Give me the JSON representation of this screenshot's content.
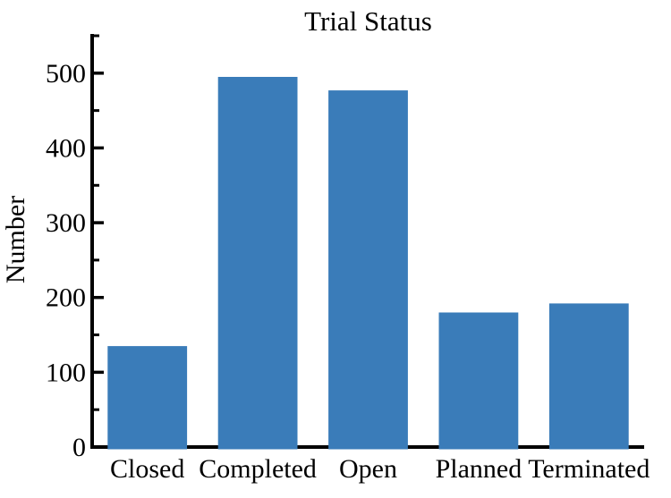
{
  "figure": {
    "background": "#ffffff"
  },
  "chart_data": {
    "type": "bar",
    "title": "Trial Status",
    "xlabel": "",
    "ylabel": "Number",
    "categories": [
      "Closed",
      "Completed",
      "Open",
      "Planned",
      "Terminated"
    ],
    "values": [
      135,
      495,
      477,
      180,
      192
    ],
    "ylim": [
      0,
      550
    ],
    "yticks": [
      0,
      100,
      200,
      300,
      400,
      500
    ],
    "minor_tick_step": 50,
    "bar_color": "#3a7cb9",
    "axis_color": "#000000",
    "text_color": "#000000",
    "grid": false,
    "legend": "none"
  }
}
